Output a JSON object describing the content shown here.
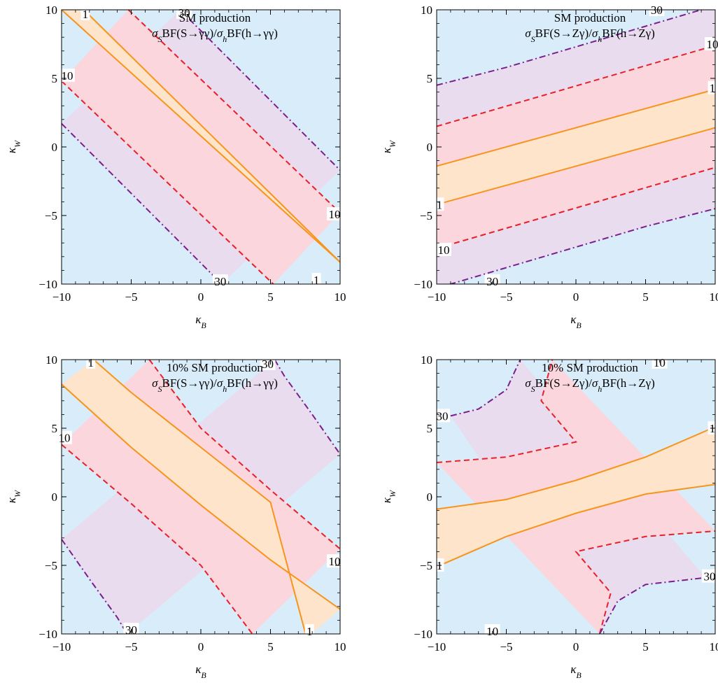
{
  "chart_data": [
    {
      "type": "contour",
      "title_lines": [
        "SM production",
        "σSBF(S→γγ)/σhBF(h→γγ)"
      ],
      "xlabel": "κB",
      "ylabel": "κW",
      "xlim": [
        -10,
        10
      ],
      "ylim": [
        -10,
        10
      ],
      "xticks": [
        -10,
        -5,
        0,
        5,
        10
      ],
      "yticks": [
        -10,
        -5,
        0,
        5,
        10
      ],
      "contours": [
        {
          "level": "1",
          "style": "solid-orange",
          "x": [
            -10,
            10
          ],
          "y": [
            10,
            -8.4
          ]
        },
        {
          "level": "1",
          "style": "solid-orange",
          "x": [
            -8.4,
            10
          ],
          "y": [
            10,
            -8.4
          ]
        },
        {
          "level": "10",
          "style": "dashed-red",
          "x": [
            -10,
            5.2
          ],
          "y": [
            4.8,
            -10
          ]
        },
        {
          "level": "10",
          "style": "dashed-red",
          "x": [
            -5.2,
            10
          ],
          "y": [
            10,
            -4.8
          ]
        },
        {
          "level": "30",
          "style": "dashdot-purple",
          "x": [
            -10,
            1.5
          ],
          "y": [
            1.7,
            -10
          ]
        },
        {
          "level": "30",
          "style": "dashdot-purple",
          "x": [
            -1.5,
            10
          ],
          "y": [
            10,
            -1.7
          ]
        }
      ],
      "labels": [
        {
          "text": "1",
          "x": -8.3,
          "y": 9.7
        },
        {
          "text": "10",
          "x": -9.6,
          "y": 5.2
        },
        {
          "text": "30",
          "x": -1.2,
          "y": 9.8
        },
        {
          "text": "10",
          "x": 9.6,
          "y": -4.9
        },
        {
          "text": "30",
          "x": 1.4,
          "y": -9.8
        },
        {
          "text": "1",
          "x": 8.3,
          "y": -9.7
        }
      ]
    },
    {
      "type": "contour",
      "title_lines": [
        "SM production",
        "σSBF(S→Zγ)/σhBF(h→Zγ)"
      ],
      "xlabel": "κB",
      "ylabel": "κW",
      "xlim": [
        -10,
        10
      ],
      "ylim": [
        -10,
        10
      ],
      "xticks": [
        -10,
        -5,
        0,
        5,
        10
      ],
      "yticks": [
        -10,
        -5,
        0,
        5,
        10
      ],
      "contours": [
        {
          "level": "1",
          "style": "solid-orange",
          "x": [
            -10,
            10
          ],
          "y": [
            -1.4,
            4.2
          ]
        },
        {
          "level": "1",
          "style": "solid-orange",
          "x": [
            -10,
            10
          ],
          "y": [
            -4.2,
            1.4
          ]
        },
        {
          "level": "10",
          "style": "dashed-red",
          "x": [
            -10,
            10
          ],
          "y": [
            1.5,
            7.4
          ]
        },
        {
          "level": "10",
          "style": "dashed-red",
          "x": [
            -10,
            10
          ],
          "y": [
            -7.4,
            -1.5
          ]
        },
        {
          "level": "30",
          "style": "dashdot-purple",
          "x": [
            -10,
            -5,
            0,
            5,
            10
          ],
          "y": [
            4.5,
            5.8,
            7.3,
            8.8,
            10.3
          ]
        },
        {
          "level": "30",
          "style": "dashdot-purple",
          "x": [
            -10,
            -5,
            0,
            5,
            10
          ],
          "y": [
            -10.3,
            -8.8,
            -7.3,
            -5.8,
            -4.5
          ]
        }
      ],
      "labels": [
        {
          "text": "30",
          "x": 5.8,
          "y": 10.0
        },
        {
          "text": "10",
          "x": 9.8,
          "y": 7.5
        },
        {
          "text": "1",
          "x": 9.8,
          "y": 4.3
        },
        {
          "text": "1",
          "x": -9.8,
          "y": -4.2
        },
        {
          "text": "10",
          "x": -9.5,
          "y": -7.5
        },
        {
          "text": "30",
          "x": -6.0,
          "y": -9.8
        }
      ]
    },
    {
      "type": "contour",
      "title_lines": [
        "10% SM production",
        "σSBF(S→γγ)/σhBF(h→γγ)"
      ],
      "xlabel": "κB",
      "ylabel": "κW",
      "xlim": [
        -10,
        10
      ],
      "ylim": [
        -10,
        10
      ],
      "xticks": [
        -10,
        -5,
        0,
        5,
        10
      ],
      "yticks": [
        -10,
        -5,
        0,
        5,
        10
      ],
      "contours": [
        {
          "level": "1",
          "style": "solid-orange",
          "x": [
            -10,
            -5,
            0,
            5,
            10
          ],
          "y": [
            8.2,
            3.6,
            -0.6,
            -4.6,
            -8.2
          ]
        },
        {
          "level": "1",
          "style": "solid-orange",
          "x": [
            -7.7,
            -5,
            0,
            5,
            7.6
          ],
          "y": [
            10,
            7.6,
            3.6,
            -0.4,
            -10.3
          ]
        },
        {
          "level": "10",
          "style": "dashed-red",
          "x": [
            -10,
            -5,
            0,
            3.7
          ],
          "y": [
            3.8,
            -0.5,
            -5.0,
            -10
          ]
        },
        {
          "level": "10",
          "style": "dashed-red",
          "x": [
            -3.7,
            0,
            5,
            10
          ],
          "y": [
            10,
            5.0,
            0.5,
            -3.8
          ]
        },
        {
          "level": "30",
          "style": "dashdot-purple",
          "x": [
            -10,
            -8,
            -6,
            -5.3
          ],
          "y": [
            -3.1,
            -6.0,
            -8.8,
            -10
          ]
        },
        {
          "level": "30",
          "style": "dashdot-purple",
          "x": [
            5.3,
            6,
            8,
            10
          ],
          "y": [
            10,
            8.8,
            6.0,
            3.1
          ]
        }
      ],
      "labels": [
        {
          "text": "1",
          "x": -7.9,
          "y": 9.8
        },
        {
          "text": "10",
          "x": -9.8,
          "y": 4.3
        },
        {
          "text": "30",
          "x": 4.8,
          "y": 9.7
        },
        {
          "text": "10",
          "x": 9.6,
          "y": -4.7
        },
        {
          "text": "30",
          "x": -5.0,
          "y": -9.7
        },
        {
          "text": "1",
          "x": 7.8,
          "y": -9.8
        }
      ]
    },
    {
      "type": "contour",
      "title_lines": [
        "10% SM production",
        "σSBF(S→Zγ)/σhBF(h→Zγ)"
      ],
      "xlabel": "κB",
      "ylabel": "κW",
      "xlim": [
        -10,
        10
      ],
      "ylim": [
        -10,
        10
      ],
      "xticks": [
        -10,
        -5,
        0,
        5,
        10
      ],
      "yticks": [
        -10,
        -5,
        0,
        5,
        10
      ],
      "contours": [
        {
          "level": "1",
          "style": "solid-orange",
          "x": [
            -10,
            -5,
            0,
            5,
            10
          ],
          "y": [
            -0.9,
            -0.2,
            1.2,
            2.9,
            5.1
          ]
        },
        {
          "level": "1",
          "style": "solid-orange",
          "x": [
            -10,
            -5,
            0,
            5,
            10
          ],
          "y": [
            -5.1,
            -2.9,
            -1.2,
            0.2,
            0.9
          ]
        },
        {
          "level": "10",
          "style": "dashed-red",
          "x": [
            -10,
            -5,
            0,
            -2.5,
            -1.7
          ],
          "y": [
            2.5,
            2.9,
            4.0,
            7.0,
            10
          ]
        },
        {
          "level": "10",
          "style": "dashed-red",
          "x": [
            1.7,
            2.5,
            0,
            5,
            10
          ],
          "y": [
            -10,
            -7.0,
            -4.0,
            -2.9,
            -2.5
          ]
        },
        {
          "level": "30",
          "style": "dashdot-purple",
          "x": [
            -9.0,
            -7,
            -5,
            -4
          ],
          "y": [
            5.9,
            6.4,
            7.8,
            10
          ]
        },
        {
          "level": "30",
          "style": "dashdot-purple",
          "x": [
            1.7,
            3,
            5,
            9.3
          ],
          "y": [
            -10,
            -7.6,
            -6.4,
            -5.9
          ]
        }
      ],
      "labels": [
        {
          "text": "30",
          "x": -9.6,
          "y": 5.9
        },
        {
          "text": "10",
          "x": 6.0,
          "y": 9.8
        },
        {
          "text": "1",
          "x": 9.8,
          "y": 5.0
        },
        {
          "text": "1",
          "x": -9.8,
          "y": -5.0
        },
        {
          "text": "30",
          "x": 9.6,
          "y": -5.8
        },
        {
          "text": "10",
          "x": -6.0,
          "y": -9.8
        }
      ]
    }
  ]
}
